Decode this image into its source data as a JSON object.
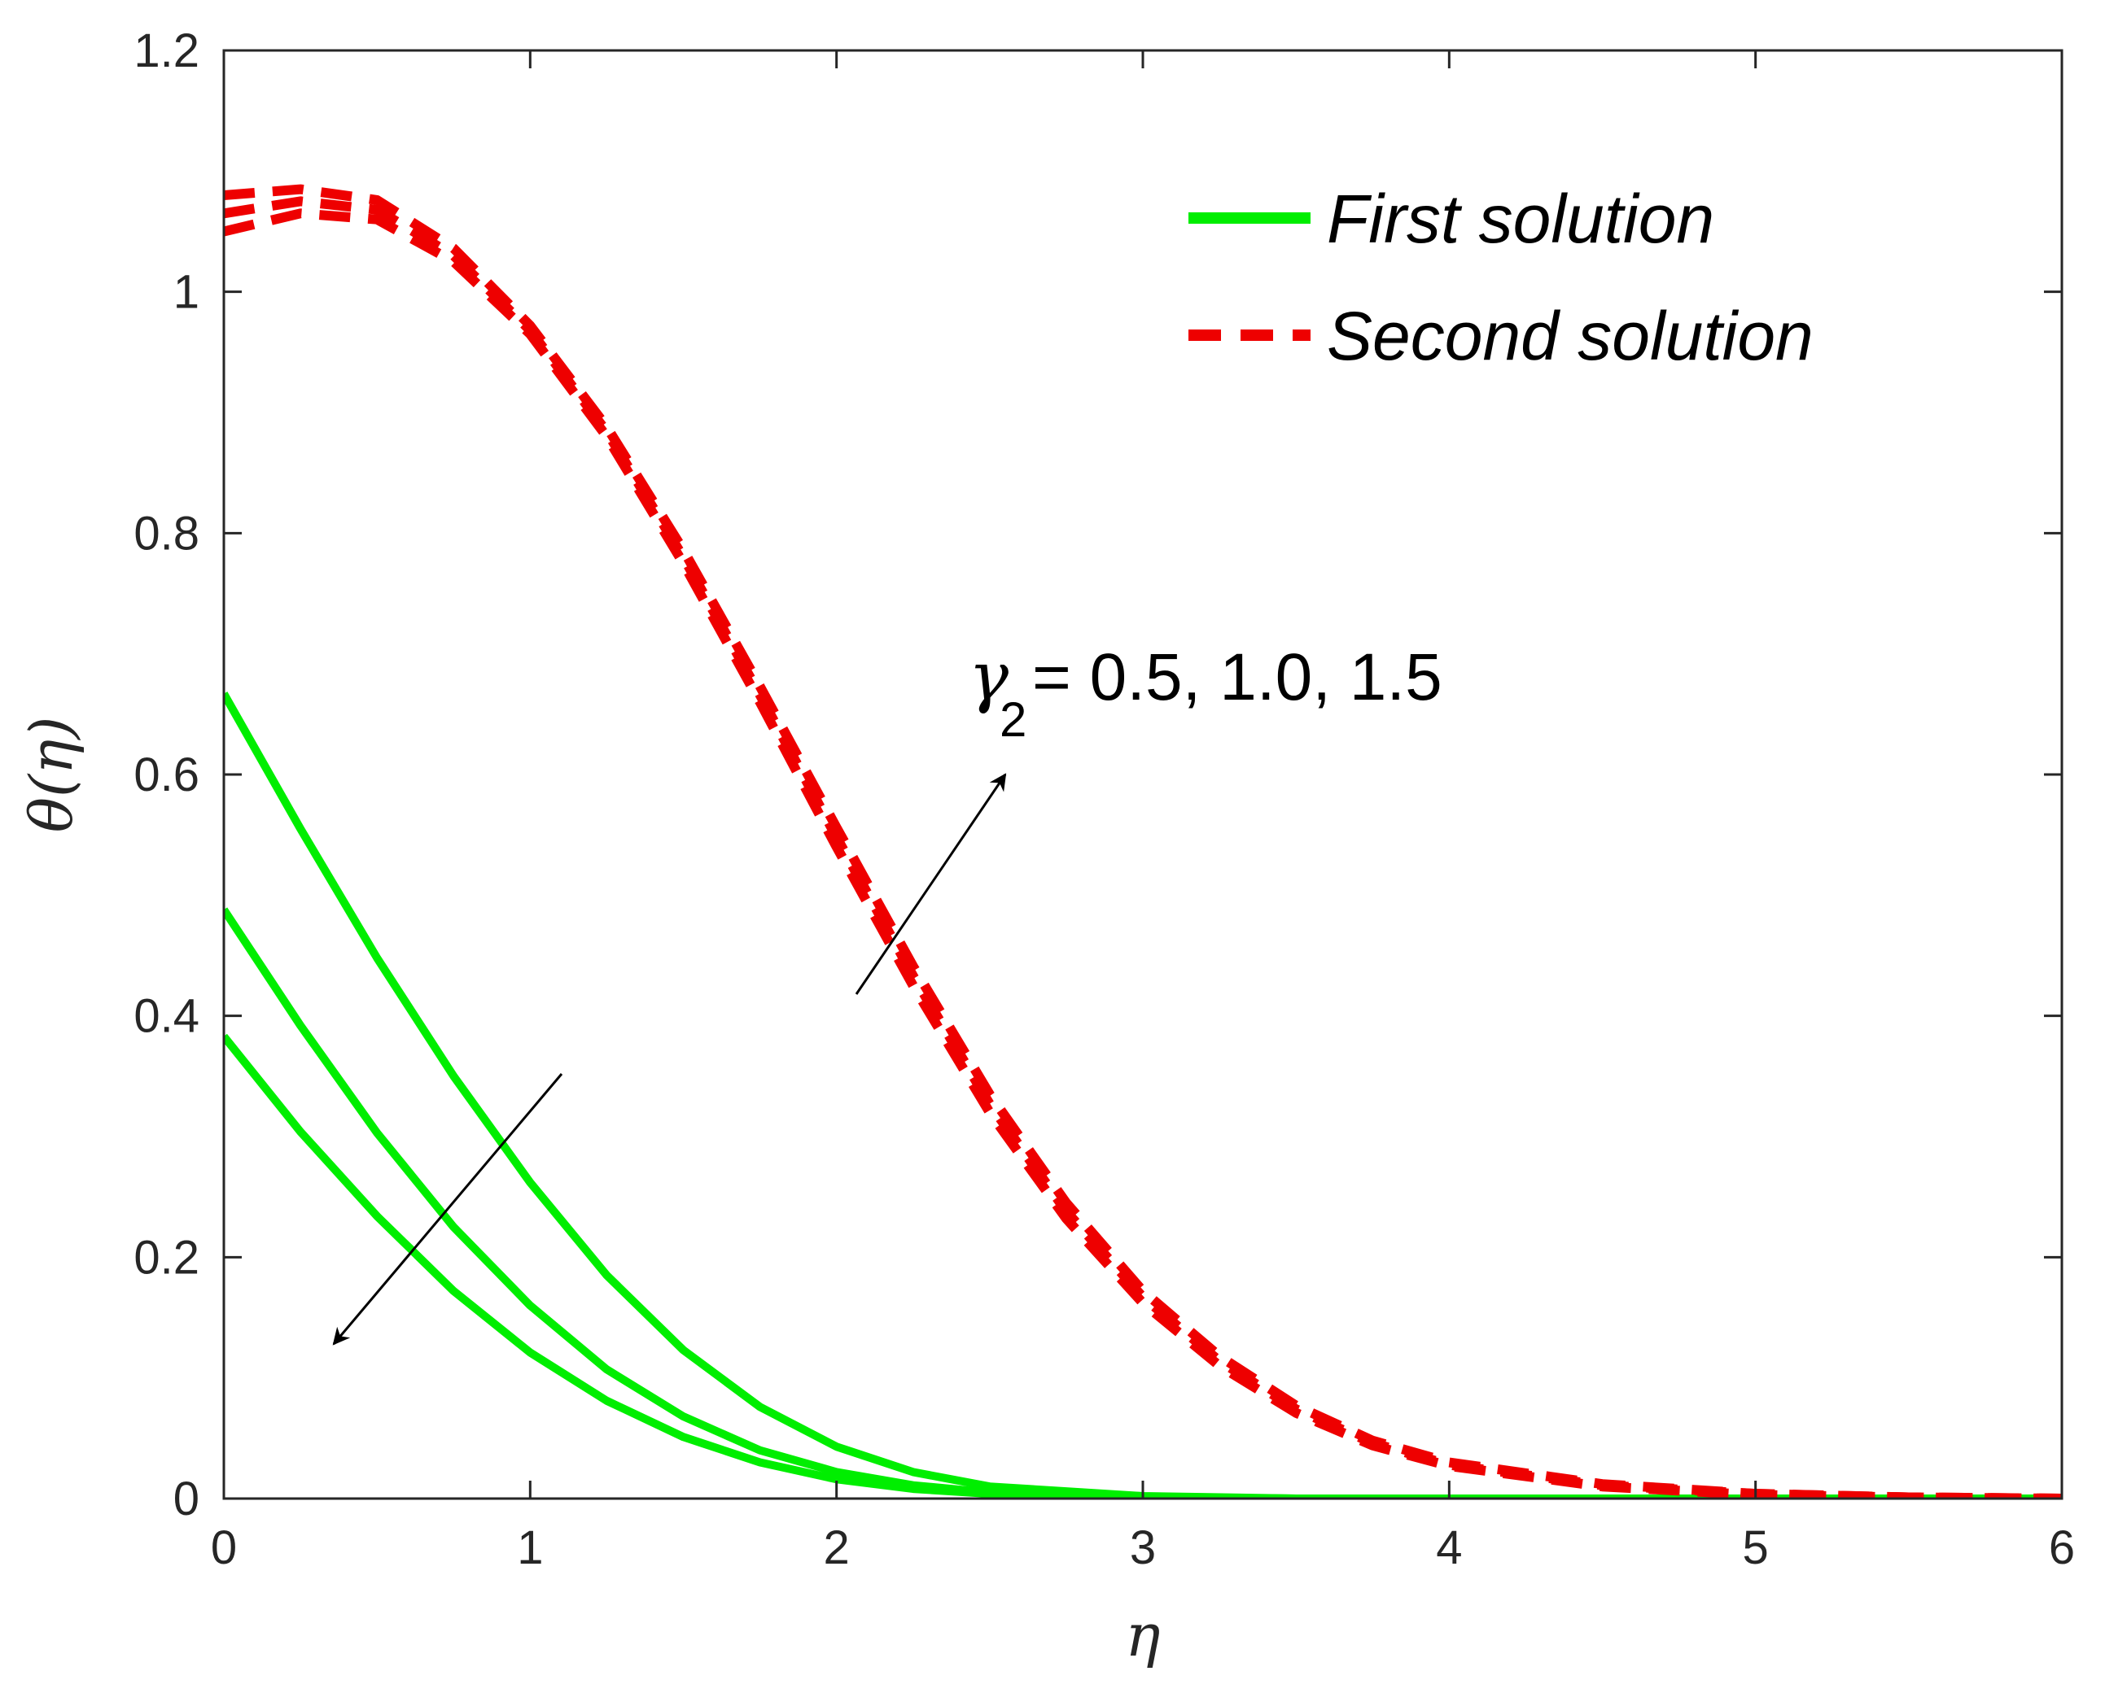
{
  "chart_data": {
    "type": "line",
    "xlabel": "η",
    "ylabel": "θ(η)",
    "xlim": [
      0,
      6
    ],
    "ylim": [
      0,
      1.2
    ],
    "xticks": [
      "0",
      "1",
      "2",
      "3",
      "4",
      "5",
      "6"
    ],
    "yticks": [
      "0",
      "0.2",
      "0.4",
      "0.6",
      "0.8",
      "1",
      "1.2"
    ],
    "grid": false,
    "legend": {
      "placement": "top-right",
      "entries": [
        "First solution",
        "Second solution"
      ]
    },
    "colors": {
      "first": "#00ee00",
      "second": "#ee0000",
      "axis": "#262626"
    },
    "annotation": {
      "symbol": "γ",
      "subscript": "2",
      "text": " = 0.5, 1.0, 1.5"
    },
    "series": [
      {
        "group": "First solution",
        "style": "solid",
        "x": [
          0,
          0.25,
          0.5,
          0.75,
          1.0,
          1.25,
          1.5,
          1.75,
          2.0,
          2.25,
          2.5,
          3.0,
          3.5,
          4.0,
          5.0,
          6.0
        ],
        "y": [
          0.667,
          0.555,
          0.448,
          0.35,
          0.262,
          0.185,
          0.123,
          0.076,
          0.043,
          0.022,
          0.01,
          0.002,
          0.0,
          0.0,
          0.0,
          0.0
        ]
      },
      {
        "group": "First solution",
        "style": "solid",
        "x": [
          0,
          0.25,
          0.5,
          0.75,
          1.0,
          1.25,
          1.5,
          1.75,
          2.0,
          2.25,
          2.5,
          3.0,
          3.5,
          4.0,
          5.0,
          6.0
        ],
        "y": [
          0.488,
          0.392,
          0.303,
          0.225,
          0.16,
          0.107,
          0.068,
          0.04,
          0.022,
          0.011,
          0.005,
          0.001,
          0.0,
          0.0,
          0.0,
          0.0
        ]
      },
      {
        "group": "First solution",
        "style": "solid",
        "x": [
          0,
          0.25,
          0.5,
          0.75,
          1.0,
          1.25,
          1.5,
          1.75,
          2.0,
          2.25,
          2.5,
          3.0,
          3.5,
          4.0,
          5.0,
          6.0
        ],
        "y": [
          0.383,
          0.304,
          0.234,
          0.172,
          0.121,
          0.081,
          0.051,
          0.03,
          0.016,
          0.008,
          0.004,
          0.001,
          0.0,
          0.0,
          0.0,
          0.0
        ]
      },
      {
        "group": "Second solution",
        "style": "dashed",
        "x": [
          0,
          0.25,
          0.5,
          0.75,
          1.0,
          1.25,
          1.5,
          1.75,
          2.0,
          2.25,
          2.5,
          2.75,
          3.0,
          3.25,
          3.5,
          3.75,
          4.0,
          4.5,
          5.0,
          5.5,
          6.0
        ],
        "y": [
          1.05,
          1.065,
          1.06,
          1.025,
          0.965,
          0.88,
          0.775,
          0.66,
          0.54,
          0.425,
          0.32,
          0.232,
          0.162,
          0.11,
          0.071,
          0.044,
          0.027,
          0.01,
          0.003,
          0.001,
          0.0
        ]
      },
      {
        "group": "Second solution",
        "style": "dashed",
        "x": [
          0,
          0.25,
          0.5,
          0.75,
          1.0,
          1.25,
          1.5,
          1.75,
          2.0,
          2.25,
          2.5,
          2.75,
          3.0,
          3.25,
          3.5,
          3.75,
          4.0,
          4.5,
          5.0,
          5.5,
          6.0
        ],
        "y": [
          1.065,
          1.075,
          1.068,
          1.03,
          0.968,
          0.884,
          0.78,
          0.666,
          0.548,
          0.433,
          0.327,
          0.238,
          0.167,
          0.114,
          0.074,
          0.046,
          0.028,
          0.011,
          0.004,
          0.001,
          0.0
        ]
      },
      {
        "group": "Second solution",
        "style": "dashed",
        "x": [
          0,
          0.25,
          0.5,
          0.75,
          1.0,
          1.25,
          1.5,
          1.75,
          2.0,
          2.25,
          2.5,
          2.75,
          3.0,
          3.25,
          3.5,
          3.75,
          4.0,
          4.5,
          5.0,
          5.5,
          6.0
        ],
        "y": [
          1.08,
          1.085,
          1.076,
          1.036,
          0.972,
          0.888,
          0.786,
          0.673,
          0.556,
          0.441,
          0.335,
          0.245,
          0.172,
          0.118,
          0.077,
          0.048,
          0.03,
          0.012,
          0.004,
          0.001,
          0.0
        ]
      }
    ]
  }
}
